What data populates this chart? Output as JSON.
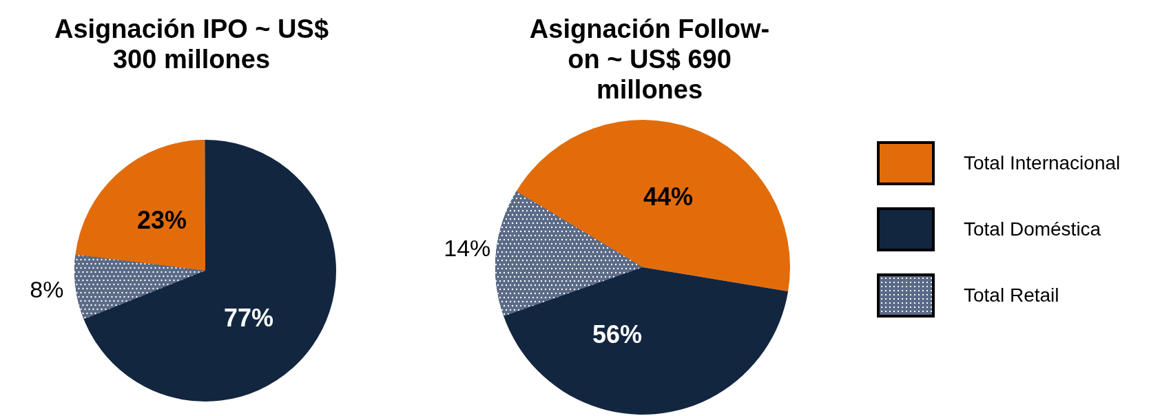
{
  "chart_data": [
    {
      "type": "pie",
      "title": "Asignación IPO ~ US$ 300 millones",
      "categories": [
        null,
        null,
        null
      ],
      "values": [
        23,
        77,
        8
      ],
      "colors": [
        "#e36c0a",
        "#132640",
        "#5b6a86"
      ],
      "value_labels": [
        "23%",
        "77%",
        "8%"
      ]
    },
    {
      "type": "pie",
      "title": "Asignación Follow-on ~ US$ 690 millones",
      "categories": [
        "Total Internacional",
        "Total Doméstica",
        "Total Retail"
      ],
      "values": [
        44,
        56,
        14
      ],
      "colors": [
        "#e36c0a",
        "#132640",
        "#5b6a86"
      ],
      "value_labels": [
        "44%",
        "56%",
        "14%"
      ],
      "legend": "right"
    }
  ]
}
